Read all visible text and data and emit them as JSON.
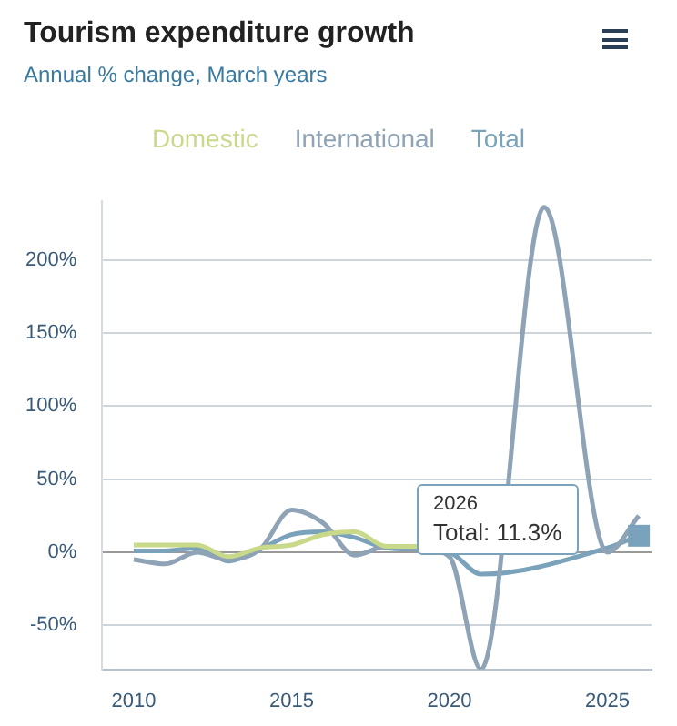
{
  "chart_data": {
    "type": "line",
    "title": "Tourism expenditure growth",
    "subtitle": "Annual % change, March years",
    "x": [
      2010,
      2011,
      2012,
      2013,
      2014,
      2015,
      2016,
      2017,
      2018,
      2019,
      2020,
      2021,
      2022,
      2023,
      2024,
      2025,
      2026
    ],
    "series": [
      {
        "name": "Domestic",
        "color": "#c9d98a",
        "values": [
          5,
          5,
          5,
          -3,
          3,
          5,
          12,
          14,
          4,
          4,
          null,
          null,
          null,
          null,
          null,
          null,
          null
        ]
      },
      {
        "name": "International",
        "color": "#8fa3b6",
        "values": [
          -5,
          -8,
          0,
          -5,
          2,
          29,
          20,
          -2,
          4,
          3,
          -3,
          -80,
          null,
          236,
          null,
          0,
          25
        ]
      },
      {
        "name": "Total",
        "color": "#7aa3bb",
        "values": [
          1,
          1,
          3,
          -6,
          2,
          12,
          14,
          10,
          3,
          2,
          0,
          -15,
          null,
          null,
          null,
          3,
          11.3
        ]
      }
    ],
    "xlim": [
      2009,
      2026.4
    ],
    "xticks": [
      2010,
      2015,
      2020,
      2025
    ],
    "ylim": [
      -80,
      240
    ],
    "yticks": [
      {
        "value": -50,
        "label": "-50%"
      },
      {
        "value": 0,
        "label": "0%"
      },
      {
        "value": 50,
        "label": "50%"
      },
      {
        "value": 100,
        "label": "100%"
      },
      {
        "value": 150,
        "label": "150%"
      },
      {
        "value": 200,
        "label": "200%"
      }
    ],
    "grid": "y",
    "legend": "top",
    "marker": "none",
    "annotations": [
      "2026",
      "Total: 11.3%"
    ]
  }
}
